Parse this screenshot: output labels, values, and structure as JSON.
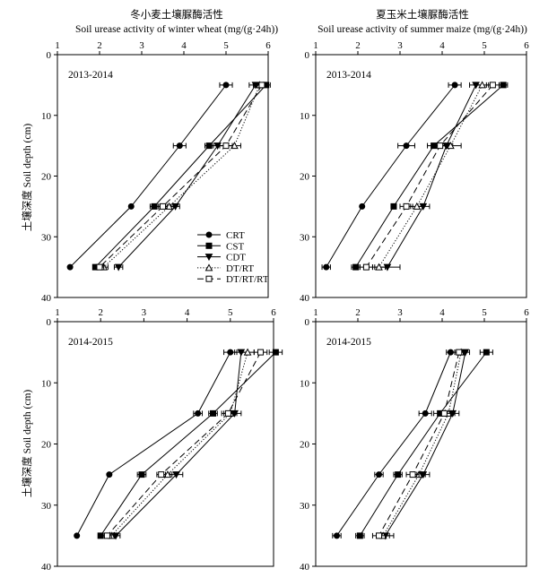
{
  "titles": {
    "left_cn": "冬小麦土壤脲酶活性",
    "left_en": "Soil urease activity of winter wheat (mg/(g·24h))",
    "right_cn": "夏玉米土壤脲酶活性",
    "right_en": "Soil urease activity of summer maize (mg/(g·24h))"
  },
  "ylabel": "土壤深度 Soil depth (cm)",
  "legend": [
    "CRT",
    "CST",
    "CDT",
    "DT/RT",
    "DT/RT/RT"
  ],
  "chart_data": [
    {
      "type": "line",
      "panel": "2013-2014",
      "crop": "winter wheat",
      "xlim": [
        1,
        6
      ],
      "ylim": [
        0,
        40
      ],
      "xticks": [
        1,
        2,
        3,
        4,
        5,
        6
      ],
      "yticks": [
        0,
        10,
        20,
        30,
        40
      ],
      "y": [
        5,
        15,
        25,
        35
      ],
      "series": [
        {
          "name": "CRT",
          "values": [
            5.0,
            3.9,
            2.75,
            1.3
          ],
          "err": [
            0.15,
            0.15,
            0,
            0
          ]
        },
        {
          "name": "CST",
          "values": [
            5.95,
            4.6,
            3.3,
            1.9
          ],
          "err": [
            0.1,
            0.1,
            0.1,
            0
          ]
        },
        {
          "name": "CDT",
          "values": [
            5.7,
            4.8,
            3.8,
            2.45
          ],
          "err": [
            0.15,
            0.15,
            0.1,
            0.1
          ]
        },
        {
          "name": "DT/RT",
          "values": [
            5.8,
            5.2,
            3.65,
            2.1
          ],
          "err": [
            0.15,
            0.15,
            0.1,
            0.1
          ]
        },
        {
          "name": "DT/RT/RT",
          "values": [
            5.85,
            5.0,
            3.5,
            2.0
          ],
          "err": [
            0.15,
            0.15,
            0.1,
            0.1
          ]
        }
      ]
    },
    {
      "type": "line",
      "panel": "2013-2014",
      "crop": "summer maize",
      "xlim": [
        1,
        6
      ],
      "ylim": [
        0,
        40
      ],
      "xticks": [
        1,
        2,
        3,
        4,
        5,
        6
      ],
      "yticks": [
        0,
        10,
        20,
        30,
        40
      ],
      "y": [
        5,
        15,
        25,
        35
      ],
      "series": [
        {
          "name": "CRT",
          "values": [
            4.3,
            3.15,
            2.1,
            1.25
          ],
          "err": [
            0.15,
            0.2,
            0,
            0.1
          ]
        },
        {
          "name": "CST",
          "values": [
            5.45,
            3.8,
            2.85,
            1.95
          ],
          "err": [
            0.1,
            0.15,
            0,
            0.1
          ]
        },
        {
          "name": "CDT",
          "values": [
            4.8,
            4.1,
            3.55,
            2.7
          ],
          "err": [
            0.15,
            0.15,
            0.15,
            0.3
          ]
        },
        {
          "name": "DT/RT",
          "values": [
            4.95,
            4.2,
            3.4,
            2.5
          ],
          "err": [
            0.15,
            0.25,
            0.15,
            0.15
          ]
        },
        {
          "name": "DT/RT/RT",
          "values": [
            5.2,
            3.95,
            3.15,
            2.2
          ],
          "err": [
            0.15,
            0.15,
            0.15,
            0.15
          ]
        }
      ]
    },
    {
      "type": "line",
      "panel": "2014-2015",
      "crop": "winter wheat",
      "xlim": [
        1,
        6
      ],
      "ylim": [
        0,
        40
      ],
      "xticks": [
        1,
        2,
        3,
        4,
        5,
        6
      ],
      "yticks": [
        0,
        10,
        20,
        30,
        40
      ],
      "y": [
        5,
        15,
        25,
        35
      ],
      "series": [
        {
          "name": "CRT",
          "values": [
            5.0,
            4.25,
            2.2,
            1.45
          ],
          "err": [
            0.15,
            0.1,
            0,
            0
          ]
        },
        {
          "name": "CST",
          "values": [
            6.05,
            4.6,
            2.95,
            2.0
          ],
          "err": [
            0.15,
            0.1,
            0.1,
            0
          ]
        },
        {
          "name": "CDT",
          "values": [
            5.25,
            5.1,
            3.75,
            2.35
          ],
          "err": [
            0.15,
            0.15,
            0.15,
            0.1
          ]
        },
        {
          "name": "DT/RT",
          "values": [
            5.4,
            5.0,
            3.55,
            2.25
          ],
          "err": [
            0.15,
            0.15,
            0.1,
            0.1
          ]
        },
        {
          "name": "DT/RT/RT",
          "values": [
            5.7,
            4.95,
            3.4,
            2.15
          ],
          "err": [
            0.15,
            0.15,
            0.1,
            0.1
          ]
        }
      ]
    },
    {
      "type": "line",
      "panel": "2014-2015",
      "crop": "summer maize",
      "xlim": [
        1,
        6
      ],
      "ylim": [
        0,
        40
      ],
      "xticks": [
        1,
        2,
        3,
        4,
        5,
        6
      ],
      "yticks": [
        0,
        10,
        20,
        30,
        40
      ],
      "y": [
        5,
        15,
        25,
        35
      ],
      "series": [
        {
          "name": "CRT",
          "values": [
            4.2,
            3.6,
            2.5,
            1.5
          ],
          "err": [
            0.1,
            0.15,
            0.1,
            0.1
          ]
        },
        {
          "name": "CST",
          "values": [
            5.05,
            3.95,
            2.95,
            2.05
          ],
          "err": [
            0.15,
            0.15,
            0.1,
            0.1
          ]
        },
        {
          "name": "CDT",
          "values": [
            4.55,
            4.25,
            3.55,
            2.65
          ],
          "err": [
            0.1,
            0.15,
            0.15,
            0.2
          ]
        },
        {
          "name": "DT/RT",
          "values": [
            4.45,
            4.15,
            3.45,
            2.6
          ],
          "err": [
            0.1,
            0.15,
            0.15,
            0.15
          ]
        },
        {
          "name": "DT/RT/RT",
          "values": [
            4.4,
            4.05,
            3.3,
            2.5
          ],
          "err": [
            0.1,
            0.15,
            0.15,
            0.15
          ]
        }
      ]
    }
  ]
}
